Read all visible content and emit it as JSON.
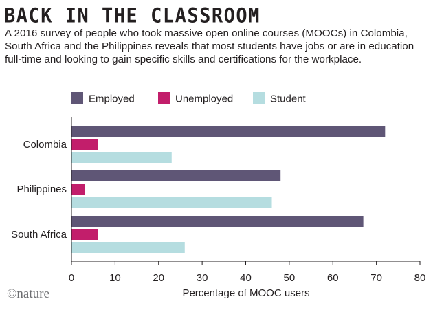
{
  "title": "BACK IN THE CLASSROOM",
  "subtitle": "A 2016 survey of people who took massive open online courses (MOOCs) in Colombia, South Africa and the Philippines reveals that most students have jobs or are in education full-time and looking to gain specific skills and certifications for the workplace.",
  "logo_text": "©nature",
  "chart_data": {
    "type": "bar",
    "orientation": "horizontal",
    "categories": [
      "Colombia",
      "Philippines",
      "South Africa"
    ],
    "series": [
      {
        "name": "Employed",
        "color": "#5f5676",
        "values": [
          72,
          48,
          67
        ]
      },
      {
        "name": "Unemployed",
        "color": "#c21e6b",
        "values": [
          6,
          3,
          6
        ]
      },
      {
        "name": "Student",
        "color": "#b5dde0",
        "values": [
          23,
          46,
          26
        ]
      }
    ],
    "xlabel": "Percentage of MOOC users",
    "xlim": [
      0,
      80
    ],
    "xticks": [
      0,
      10,
      20,
      30,
      40,
      50,
      60,
      70,
      80
    ],
    "grid": false,
    "legend_placement": "top-left"
  }
}
